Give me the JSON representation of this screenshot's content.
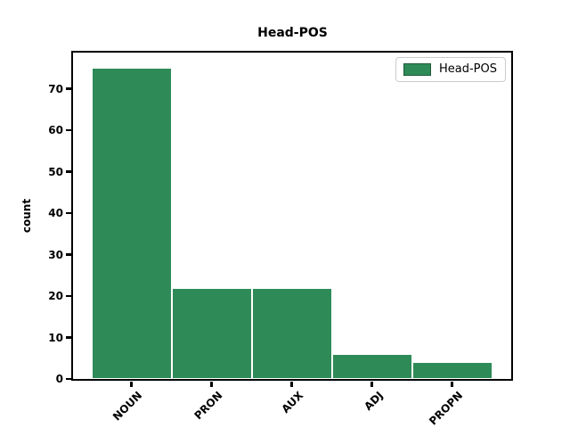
{
  "chart_data": {
    "type": "bar",
    "title": "Head-POS",
    "categories": [
      "NOUN",
      "PRON",
      "AUX",
      "ADJ",
      "PROPN"
    ],
    "values": [
      75,
      22,
      22,
      6,
      4
    ],
    "xlabel": "",
    "ylabel": "count",
    "ylim": [
      0,
      78.75
    ],
    "yticks": [
      0,
      10,
      20,
      30,
      40,
      50,
      60,
      70
    ],
    "xtick_rotation_deg": 45,
    "grid": false,
    "bar_color": "#2e8b57",
    "bar_edge_color": "#ffffff",
    "spine_color": "#000000",
    "legend": {
      "label": "Head-POS",
      "position": "upper right",
      "swatch_color": "#2e8b57"
    }
  }
}
